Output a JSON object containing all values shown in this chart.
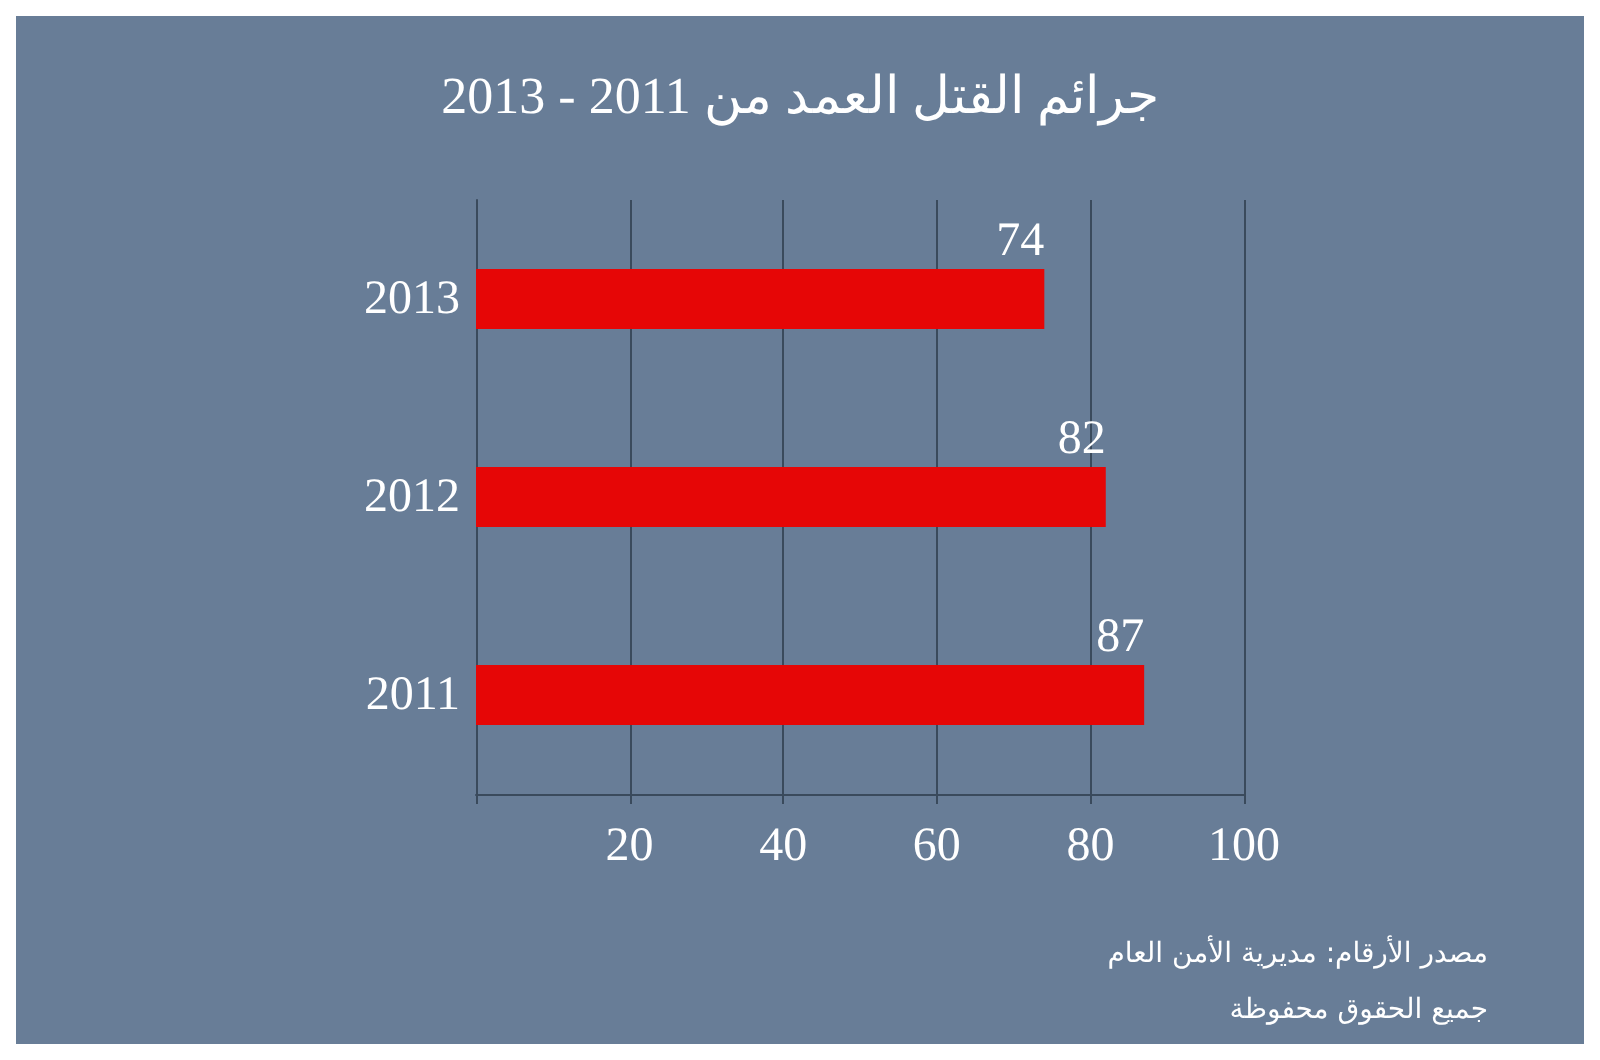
{
  "chart_data": {
    "type": "bar",
    "orientation": "horizontal",
    "title": "جرائم القتل العمد من 2011 - 2013",
    "categories": [
      "2013",
      "2012",
      "2011"
    ],
    "values": [
      74,
      82,
      87
    ],
    "color": "#e60606",
    "xlim": [
      0,
      100
    ],
    "xticks": [
      {
        "value": 0,
        "label": null
      },
      20,
      40,
      60,
      80,
      100
    ],
    "grid": "x",
    "data_labels": true,
    "annotations": [
      "مصدر الأرقام: مديرية الأمن العام",
      "جميع الحقوق محفوظة"
    ]
  }
}
